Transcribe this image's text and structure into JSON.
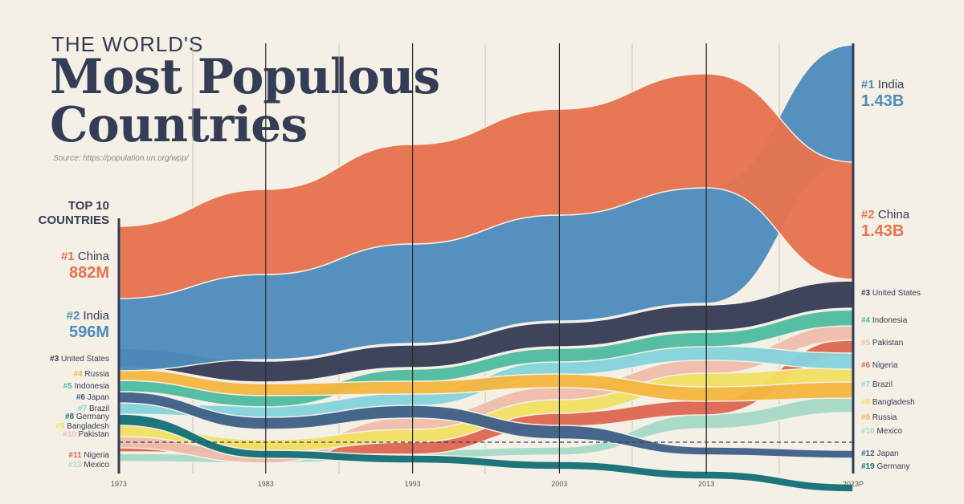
{
  "header": {
    "kicker": "THE WORLD'S",
    "title_line1": "Most Populous",
    "title_line2": "Countries",
    "source": "Source: https://population.un.org/wpp/",
    "panel_line1": "TOP 10",
    "panel_line2": "COUNTRIES"
  },
  "colors": {
    "China": "#e7724f",
    "India": "#4f8bbd",
    "United States": "#353c56",
    "Indonesia": "#4fbba0",
    "Russia": "#f4b63f",
    "Japan": "#3f6088",
    "Brazil": "#85d2dc",
    "Germany": "#157078",
    "Bangladesh": "#f1e063",
    "Pakistan": "#efbcac",
    "Nigeria": "#dd6753",
    "Mexico": "#a7dac8",
    "text": "#353c56",
    "background": "#f4f0e6"
  },
  "chart_data": {
    "type": "area",
    "x": [
      "1973",
      "1983",
      "1993",
      "2003",
      "2013",
      "2023P"
    ],
    "series": [
      {
        "name": "China",
        "ranks": [
          1,
          1,
          1,
          1,
          1,
          2
        ]
      },
      {
        "name": "India",
        "ranks": [
          2,
          2,
          2,
          2,
          2,
          1
        ]
      },
      {
        "name": "United States",
        "ranks": [
          3,
          3,
          3,
          3,
          3,
          3
        ]
      },
      {
        "name": "Russia",
        "ranks": [
          4,
          4,
          5,
          6,
          8,
          9
        ]
      },
      {
        "name": "Indonesia",
        "ranks": [
          5,
          5,
          4,
          4,
          4,
          4
        ]
      },
      {
        "name": "Japan",
        "ranks": [
          6,
          7,
          7,
          10,
          11,
          12
        ]
      },
      {
        "name": "Brazil",
        "ranks": [
          7,
          6,
          6,
          5,
          5,
          7
        ]
      },
      {
        "name": "Germany",
        "ranks": [
          8,
          12,
          13,
          14,
          16,
          19
        ]
      },
      {
        "name": "Bangladesh",
        "ranks": [
          9,
          9,
          9,
          8,
          7,
          8
        ]
      },
      {
        "name": "Pakistan",
        "ranks": [
          10,
          10,
          8,
          7,
          6,
          5
        ]
      },
      {
        "name": "Nigeria",
        "ranks": [
          11,
          11,
          10,
          9,
          9,
          6
        ]
      },
      {
        "name": "Mexico",
        "ranks": [
          13,
          13,
          12,
          11,
          10,
          10
        ]
      }
    ],
    "start_labels": [
      {
        "rank": "#1",
        "name": "China",
        "value": "882M"
      },
      {
        "rank": "#2",
        "name": "India",
        "value": "596M"
      },
      {
        "rank": "#3",
        "name": "United States"
      },
      {
        "rank": "#4",
        "name": "Russia"
      },
      {
        "rank": "#5",
        "name": "Indonesia"
      },
      {
        "rank": "#6",
        "name": "Japan"
      },
      {
        "rank": "#7",
        "name": "Brazil"
      },
      {
        "rank": "#8",
        "name": "Germany"
      },
      {
        "rank": "#9",
        "name": "Bangladesh"
      },
      {
        "rank": "#10",
        "name": "Pakistan"
      },
      {
        "rank": "#11",
        "name": "Nigeria"
      },
      {
        "rank": "#13",
        "name": "Mexico"
      }
    ],
    "end_labels": [
      {
        "rank": "#1",
        "name": "India",
        "value": "1.43B"
      },
      {
        "rank": "#2",
        "name": "China",
        "value": "1.43B"
      },
      {
        "rank": "#3",
        "name": "United States"
      },
      {
        "rank": "#4",
        "name": "Indonesia"
      },
      {
        "rank": "#5",
        "name": "Pakistan"
      },
      {
        "rank": "#6",
        "name": "Nigeria"
      },
      {
        "rank": "#7",
        "name": "Brazil"
      },
      {
        "rank": "#8",
        "name": "Bangladesh"
      },
      {
        "rank": "#9",
        "name": "Russia"
      },
      {
        "rank": "#10",
        "name": "Mexico"
      },
      {
        "rank": "#12",
        "name": "Japan"
      },
      {
        "rank": "#19",
        "name": "Germany"
      }
    ]
  }
}
